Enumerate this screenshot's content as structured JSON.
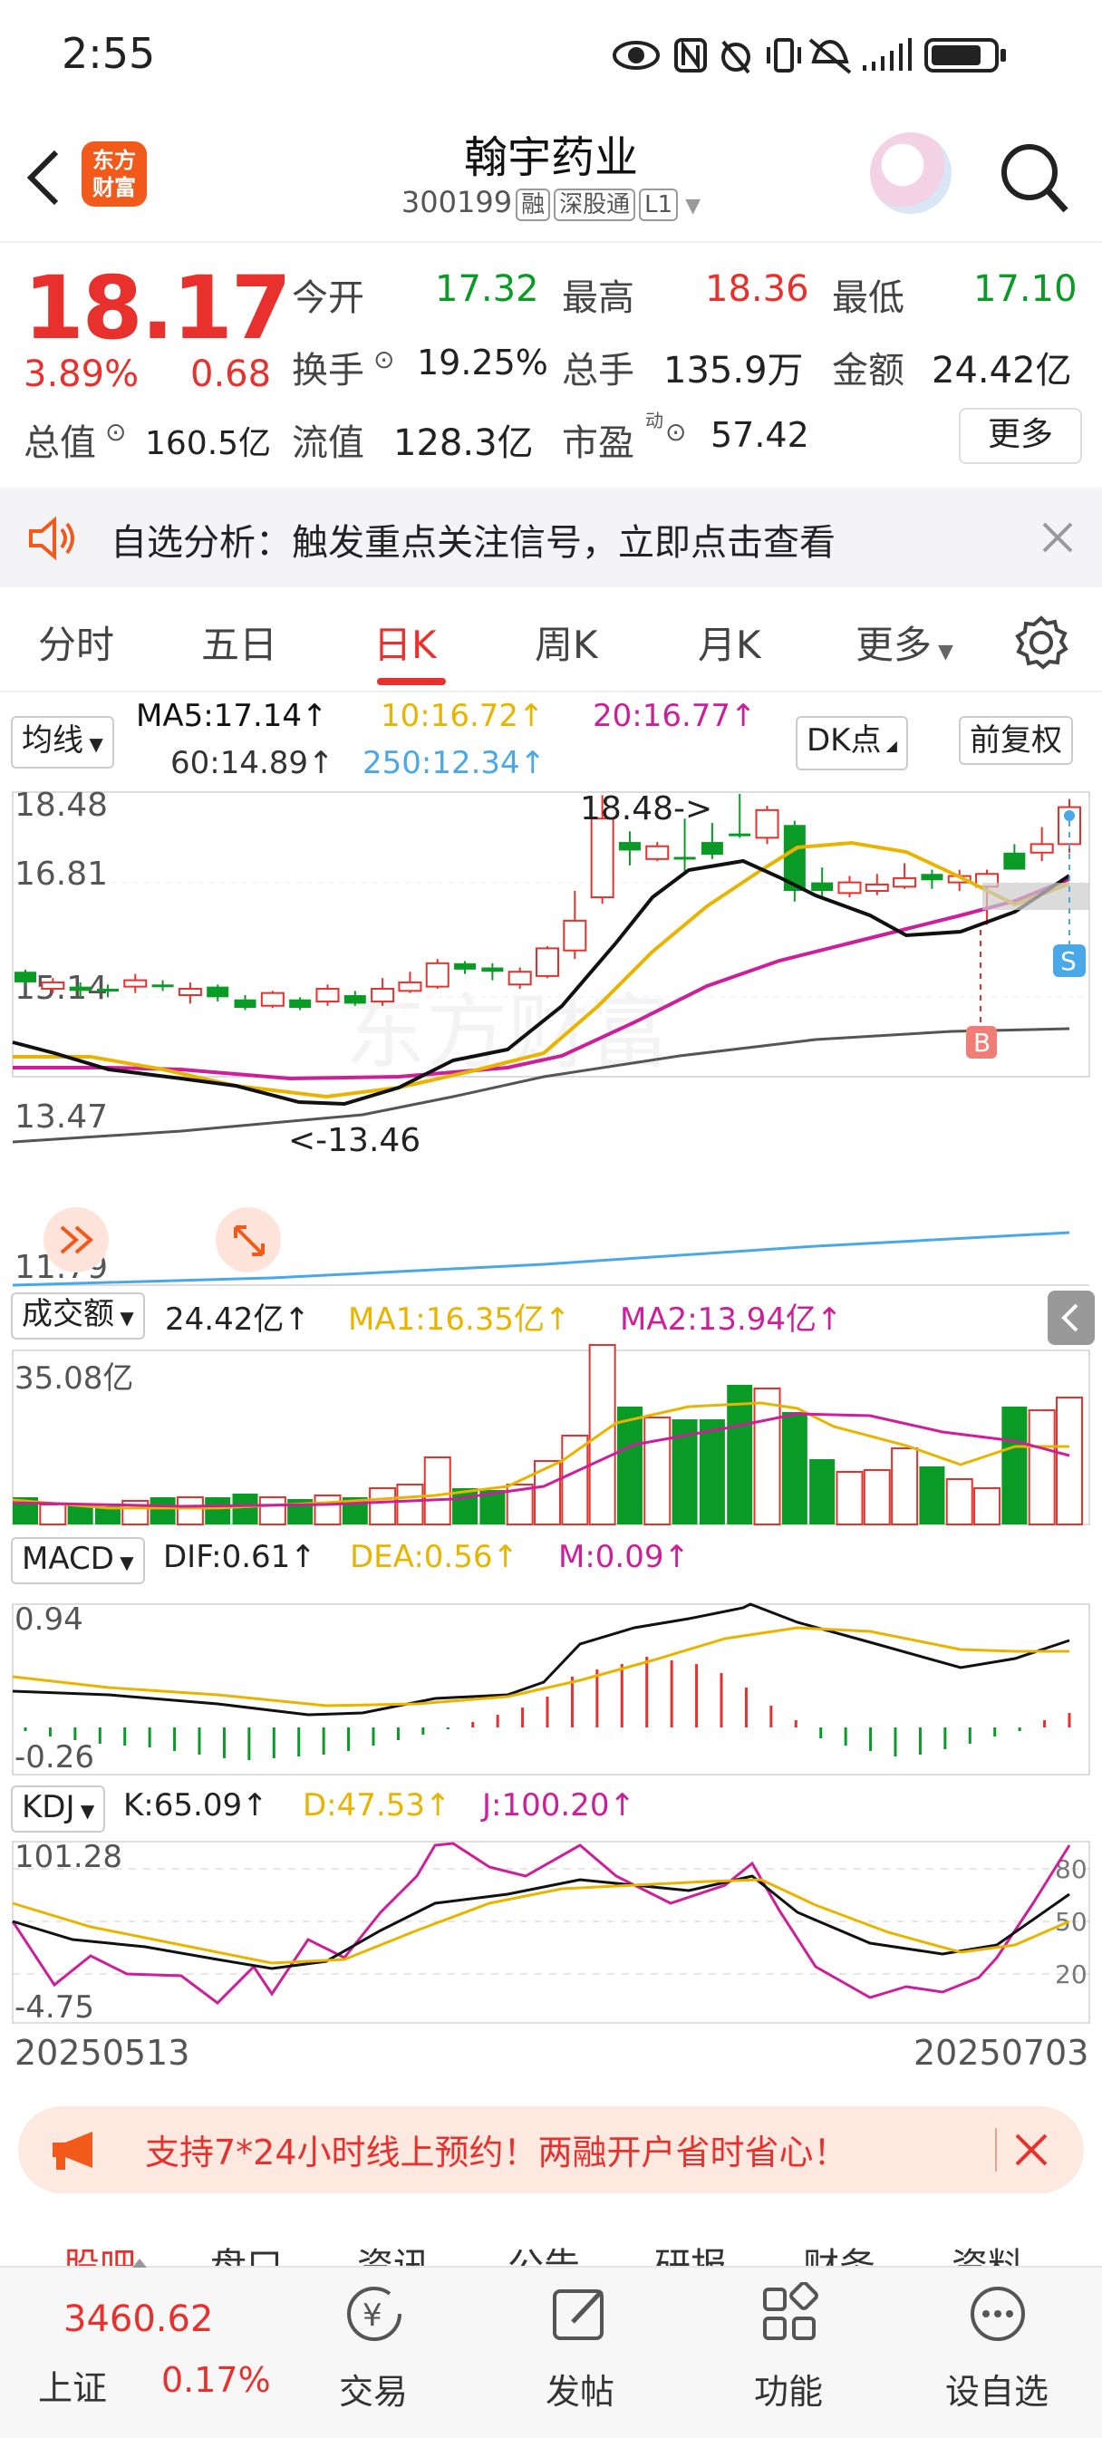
{
  "status_bar": {
    "time": "2:55"
  },
  "header": {
    "logo_line1": "东方",
    "logo_line2": "财富",
    "name": "翰宇药业",
    "code": "300199",
    "tags": [
      "融",
      "深股通",
      "L1"
    ]
  },
  "quote": {
    "price": "18.17",
    "change_pct": "3.89%",
    "change": "0.68",
    "rows": [
      [
        {
          "label": "今开",
          "value": "17.32",
          "color": "green"
        },
        {
          "label": "最高",
          "value": "18.36",
          "color": "red"
        },
        {
          "label": "最低",
          "value": "17.10",
          "color": "green"
        }
      ],
      [
        {
          "label": "换手",
          "value": "19.25%",
          "color": "dark"
        },
        {
          "label": "总手",
          "value": "135.9万",
          "color": "dark"
        },
        {
          "label": "金额",
          "value": "24.42亿",
          "color": "dark"
        }
      ]
    ],
    "total_value_label": "总值",
    "total_value": "160.5亿",
    "float_label": "流值",
    "float_value": "128.3亿",
    "pe_label": "市盈",
    "pe_sup": "动",
    "pe_value": "57.42",
    "more": "更多"
  },
  "alert": {
    "text": "自选分析：触发重点关注信号，立即点击查看"
  },
  "tabs": [
    "分时",
    "五日",
    "日K",
    "周K",
    "月K",
    "更多"
  ],
  "active_tab": "日K",
  "kline": {
    "ma_selector": "均线",
    "ma5": "MA5:17.14↑",
    "ma10": "10:16.72↑",
    "ma20": "20:16.77↑",
    "ma60": "60:14.89↑",
    "ma250": "250:12.34↑",
    "dk_label": "DK点",
    "adjust_label": "前复权",
    "y_labels": [
      "18.48",
      "16.81",
      "15.14",
      "13.47",
      "11.79"
    ],
    "high_annotation": "18.48->",
    "low_annotation": "<-13.46",
    "buy_marker": "B",
    "sell_marker": "S",
    "colors": {
      "up": "#e8312c",
      "down": "#0a9a26",
      "ma5": "#111111",
      "ma10": "#e8b400",
      "ma20": "#cc1f9a",
      "ma60": "#555555",
      "ma250": "#4aa8e8"
    }
  },
  "volume": {
    "selector": "成交额",
    "value": "24.42亿↑",
    "ma1": "MA1:16.35亿↑",
    "ma2": "MA2:13.94亿↑",
    "max_label": "35.08亿"
  },
  "macd": {
    "selector": "MACD",
    "dif": "DIF:0.61↑",
    "dea": "DEA:0.56↑",
    "m": "M:0.09↑",
    "y_top": "0.94",
    "y_bottom": "-0.26"
  },
  "kdj": {
    "selector": "KDJ",
    "k": "K:65.09↑",
    "d": "D:47.53↑",
    "j": "J:100.20↑",
    "y_top": "101.28",
    "y_bottom": "-4.75",
    "levels": [
      "80",
      "50",
      "20"
    ]
  },
  "dates": {
    "start": "20250513",
    "end": "20250703"
  },
  "chart_data": {
    "type": "candlestick",
    "x": [
      "20250513",
      "20250703"
    ],
    "ylim": [
      11.79,
      18.48
    ],
    "high": 18.48,
    "low": 13.46,
    "candles": [
      [
        14.05,
        14.3,
        13.95,
        14.35,
        "d"
      ],
      [
        13.9,
        14.05,
        13.8,
        14.15,
        "u"
      ],
      [
        13.85,
        13.95,
        13.7,
        14.05,
        "d"
      ],
      [
        13.9,
        13.85,
        13.7,
        14.0,
        "d"
      ],
      [
        13.95,
        14.1,
        13.8,
        14.25,
        "u"
      ],
      [
        14.0,
        13.95,
        13.85,
        14.1,
        "d"
      ],
      [
        13.75,
        13.9,
        13.55,
        14.05,
        "u"
      ],
      [
        13.95,
        13.7,
        13.6,
        14.0,
        "d"
      ],
      [
        13.45,
        13.65,
        13.4,
        13.75,
        "d"
      ],
      [
        13.5,
        13.8,
        13.45,
        13.85,
        "u"
      ],
      [
        13.65,
        13.45,
        13.4,
        13.7,
        "d"
      ],
      [
        13.6,
        13.9,
        13.5,
        14.0,
        "u"
      ],
      [
        13.55,
        13.75,
        13.5,
        13.85,
        "d"
      ],
      [
        13.6,
        13.9,
        13.5,
        14.15,
        "u"
      ],
      [
        13.85,
        14.05,
        13.8,
        14.3,
        "u"
      ],
      [
        13.95,
        14.5,
        13.9,
        14.6,
        "u"
      ],
      [
        14.5,
        14.35,
        14.25,
        14.55,
        "d"
      ],
      [
        14.3,
        14.4,
        14.1,
        14.5,
        "d"
      ],
      [
        14.0,
        14.3,
        13.9,
        14.4,
        "u"
      ],
      [
        14.2,
        14.85,
        14.15,
        14.9,
        "u"
      ],
      [
        14.8,
        15.5,
        14.6,
        16.2,
        "u"
      ],
      [
        16.05,
        17.9,
        15.9,
        18.45,
        "u"
      ],
      [
        17.35,
        17.15,
        16.8,
        17.6,
        "d"
      ],
      [
        16.95,
        17.25,
        16.9,
        17.35,
        "u"
      ],
      [
        17.0,
        16.95,
        16.6,
        17.9,
        "d"
      ],
      [
        17.35,
        17.05,
        16.95,
        17.8,
        "d"
      ],
      [
        17.55,
        17.5,
        17.45,
        18.48,
        "d"
      ],
      [
        17.45,
        18.1,
        17.3,
        18.2,
        "u"
      ],
      [
        17.75,
        16.2,
        15.95,
        17.85,
        "d"
      ],
      [
        16.4,
        16.2,
        16.0,
        16.75,
        "d"
      ],
      [
        16.15,
        16.4,
        16.05,
        16.55,
        "u"
      ],
      [
        16.2,
        16.35,
        16.1,
        16.6,
        "u"
      ],
      [
        16.3,
        16.5,
        16.25,
        16.85,
        "u"
      ],
      [
        16.6,
        16.45,
        16.25,
        16.7,
        "d"
      ],
      [
        16.4,
        16.55,
        16.2,
        16.7,
        "u"
      ],
      [
        16.3,
        16.6,
        15.4,
        16.7,
        "u"
      ],
      [
        16.7,
        17.1,
        16.7,
        17.3,
        "d"
      ],
      [
        17.1,
        17.3,
        16.9,
        17.7,
        "u"
      ],
      [
        17.3,
        18.17,
        17.1,
        18.36,
        "u"
      ]
    ]
  }
}
